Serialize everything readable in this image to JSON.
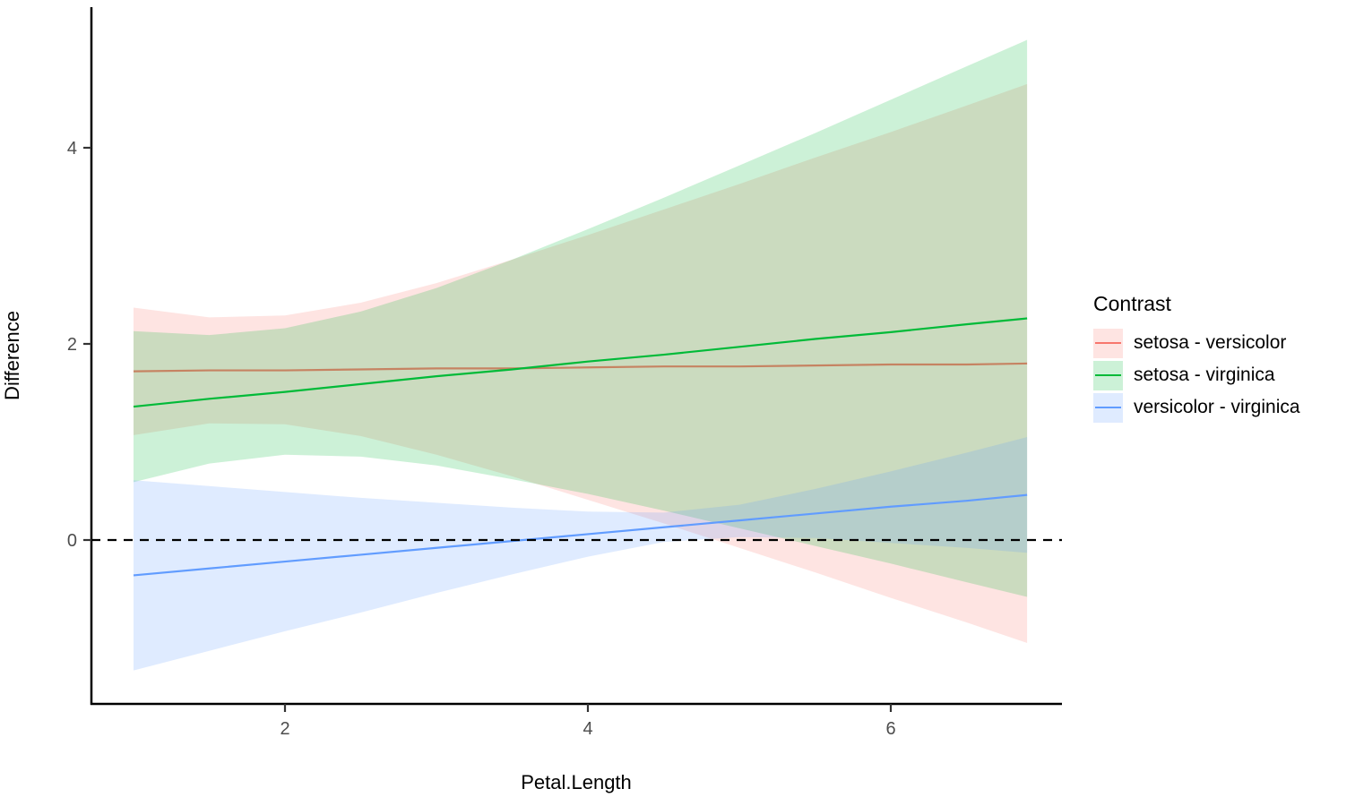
{
  "chart_data": {
    "type": "line",
    "title": "",
    "xlabel": "Petal.Length",
    "ylabel": "Difference",
    "legend_title": "Contrast",
    "legend_position": "right",
    "grid": false,
    "xlim": [
      0.72,
      7.13
    ],
    "ylim": [
      -1.66,
      5.43
    ],
    "x_ticks": [
      2,
      4,
      6
    ],
    "y_ticks": [
      0,
      2,
      4
    ],
    "zero_line": {
      "y": 0,
      "style": "dashed",
      "color": "#000000"
    },
    "ribbon_opacity": 0.2,
    "axis_color": "#000000",
    "tick_label_color": "#4D4D4D",
    "x": [
      1,
      1.5,
      2,
      2.5,
      3,
      3.5,
      4,
      4.5,
      5,
      5.5,
      6,
      6.5,
      6.9
    ],
    "series": [
      {
        "name": "setosa - versicolor",
        "color": "#F8766D",
        "line": [
          1.72,
          1.73,
          1.73,
          1.74,
          1.75,
          1.75,
          1.76,
          1.77,
          1.77,
          1.78,
          1.79,
          1.79,
          1.8
        ],
        "upper": [
          2.37,
          2.27,
          2.29,
          2.42,
          2.62,
          2.86,
          3.11,
          3.37,
          3.63,
          3.9,
          4.16,
          4.43,
          4.65
        ],
        "lower": [
          1.07,
          1.19,
          1.18,
          1.06,
          0.87,
          0.65,
          0.41,
          0.17,
          -0.08,
          -0.33,
          -0.59,
          -0.84,
          -1.05
        ]
      },
      {
        "name": "setosa - virginica",
        "color": "#00BA38",
        "line": [
          1.36,
          1.44,
          1.51,
          1.59,
          1.67,
          1.74,
          1.82,
          1.89,
          1.97,
          2.05,
          2.12,
          2.2,
          2.26
        ],
        "upper": [
          2.13,
          2.09,
          2.16,
          2.33,
          2.57,
          2.86,
          3.17,
          3.49,
          3.82,
          4.15,
          4.49,
          4.83,
          5.1
        ],
        "lower": [
          0.59,
          0.78,
          0.87,
          0.85,
          0.76,
          0.62,
          0.47,
          0.3,
          0.12,
          -0.06,
          -0.24,
          -0.43,
          -0.58
        ]
      },
      {
        "name": "versicolor - virginica",
        "color": "#619CFF",
        "line": [
          -0.36,
          -0.29,
          -0.22,
          -0.15,
          -0.08,
          -0.01,
          0.06,
          0.13,
          0.2,
          0.27,
          0.34,
          0.4,
          0.46
        ],
        "upper": [
          0.61,
          0.55,
          0.49,
          0.43,
          0.38,
          0.33,
          0.29,
          0.28,
          0.36,
          0.52,
          0.7,
          0.89,
          1.05
        ],
        "lower": [
          -1.33,
          -1.13,
          -0.93,
          -0.74,
          -0.54,
          -0.35,
          -0.17,
          -0.02,
          0.03,
          0.02,
          -0.03,
          -0.08,
          -0.13
        ]
      }
    ]
  }
}
